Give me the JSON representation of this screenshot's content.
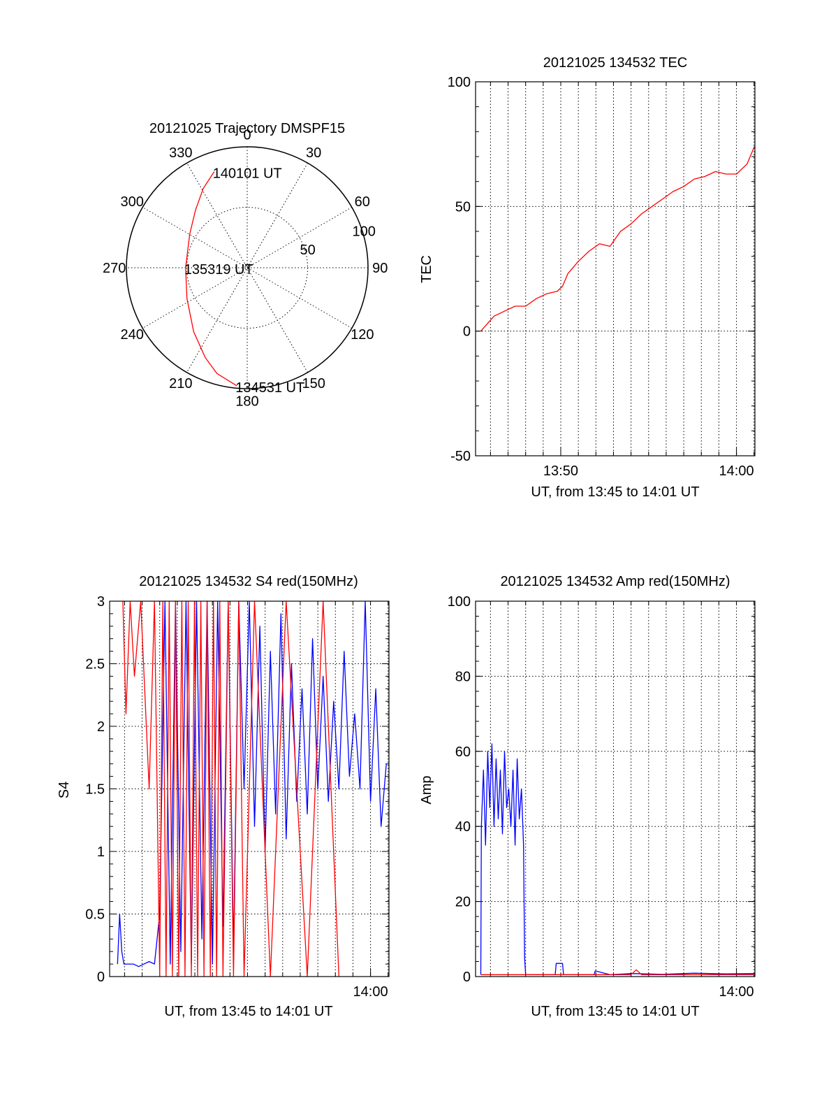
{
  "colors": {
    "red": "#ff0000",
    "blue": "#0000ff",
    "axis": "#000000"
  },
  "chart_data": [
    {
      "type": "polar",
      "title": "20121025 Trajectory DMSPF15",
      "azimuth_labels": [
        "0",
        "30",
        "60",
        "90",
        "120",
        "150",
        "180",
        "210",
        "240",
        "270",
        "300",
        "330"
      ],
      "radial_labels": [
        "50",
        "100"
      ],
      "rlim": [
        0,
        100
      ],
      "trajectory": {
        "color": "red",
        "points": [
          {
            "az": 341,
            "r": 84
          },
          {
            "az": 331,
            "r": 75
          },
          {
            "az": 318,
            "r": 64
          },
          {
            "az": 300,
            "r": 55
          },
          {
            "az": 270,
            "r": 51
          },
          {
            "az": 243,
            "r": 56
          },
          {
            "az": 220,
            "r": 69
          },
          {
            "az": 205,
            "r": 82
          },
          {
            "az": 196,
            "r": 91
          },
          {
            "az": 185,
            "r": 98
          }
        ]
      },
      "annotations": [
        {
          "text": "140101 UT",
          "az": 341,
          "r": 84
        },
        {
          "text": "135319 UT",
          "az": 270,
          "r": 51
        },
        {
          "text": "134531 UT",
          "az": 185,
          "r": 98
        }
      ]
    },
    {
      "type": "line",
      "title": "20121025 134532 TEC",
      "ylabel": "TEC",
      "xlabel": "UT, from 13:45 to 14:01 UT",
      "ylim": [
        -50,
        100
      ],
      "yticks": [
        -50,
        0,
        50,
        100
      ],
      "xlim": [
        13.7525,
        14.0175
      ],
      "xticks": [
        {
          "v": 13.8333,
          "label": "13:50"
        },
        {
          "v": 14.0,
          "label": "14:00"
        }
      ],
      "grid": true,
      "series": [
        {
          "color": "red",
          "x": [
            13.7575,
            13.77,
            13.78,
            13.79,
            13.8,
            13.81,
            13.82,
            13.83,
            13.835,
            13.84,
            13.85,
            13.86,
            13.87,
            13.88,
            13.89,
            13.9,
            13.91,
            13.92,
            13.93,
            13.94,
            13.95,
            13.96,
            13.97,
            13.98,
            13.99,
            14.0,
            14.01,
            14.017
          ],
          "y": [
            0,
            6,
            8,
            10,
            10,
            13,
            15,
            16,
            18,
            23,
            28,
            32,
            35,
            34,
            40,
            43,
            47,
            50,
            53,
            56,
            58,
            61,
            62,
            64,
            63,
            63,
            67,
            74
          ]
        }
      ]
    },
    {
      "type": "line",
      "title": "20121025 134532 S4 red(150MHz)",
      "ylabel": "S4",
      "xlabel": "UT, from 13:45 to 14:01 UT",
      "ylim": [
        0,
        3
      ],
      "yticks": [
        0,
        0.5,
        1,
        1.5,
        2,
        2.5,
        3
      ],
      "ytick_labels": [
        "0",
        "0.5",
        "1",
        "1.5",
        "2",
        "2.5",
        "3"
      ],
      "xlim": [
        13.7525,
        14.0175
      ],
      "xticks": [
        {
          "v": 14.0,
          "label": "14:00"
        }
      ],
      "grid": true,
      "series": [
        {
          "color": "blue",
          "x": [
            13.76,
            13.762,
            13.764,
            13.766,
            13.77,
            13.775,
            13.78,
            13.785,
            13.79,
            13.795,
            13.8,
            13.805,
            13.81,
            13.815,
            13.82,
            13.825,
            13.83,
            13.835,
            13.84,
            13.845,
            13.85,
            13.855,
            13.86,
            13.865,
            13.87,
            13.875,
            13.88,
            13.885,
            13.89,
            13.895,
            13.9,
            13.905,
            13.91,
            13.915,
            13.92,
            13.925,
            13.93,
            13.935,
            13.94,
            13.945,
            13.95,
            13.955,
            13.96,
            13.965,
            13.97,
            13.975,
            13.98,
            13.985,
            13.99,
            13.995,
            14.0,
            14.005,
            14.01,
            14.015
          ],
          "y": [
            0.1,
            0.5,
            0.2,
            0.1,
            0.1,
            0.1,
            0.08,
            0.1,
            0.12,
            0.1,
            0.5,
            3.0,
            0.1,
            3.0,
            0.2,
            3.0,
            0.1,
            3.0,
            0.3,
            3.0,
            0.1,
            3.0,
            0.4,
            3.0,
            0.2,
            3.0,
            1.5,
            3.0,
            1.2,
            2.8,
            1.0,
            2.6,
            1.3,
            2.9,
            1.1,
            2.5,
            1.4,
            2.3,
            1.3,
            2.7,
            1.5,
            2.4,
            1.4,
            2.2,
            1.5,
            2.6,
            1.6,
            2.1,
            1.5,
            3.0,
            1.4,
            2.3,
            1.2,
            1.7
          ]
        },
        {
          "color": "red",
          "x": [
            13.765,
            13.768,
            13.772,
            13.776,
            13.782,
            13.79,
            13.795,
            13.8,
            13.803,
            13.806,
            13.809,
            13.812,
            13.815,
            13.818,
            13.821,
            13.824,
            13.827,
            13.83,
            13.833,
            13.836,
            13.839,
            13.842,
            13.845,
            13.848,
            13.851,
            13.854,
            13.857,
            13.86,
            13.865,
            13.87,
            13.875,
            13.88,
            13.89,
            13.905,
            13.92,
            13.94,
            13.955,
            13.97
          ],
          "y": [
            3.0,
            2.1,
            3.0,
            2.4,
            3.0,
            1.5,
            3.0,
            0,
            3.0,
            0,
            3.0,
            0,
            3.0,
            0,
            3.0,
            0,
            3.0,
            0,
            3.0,
            0,
            3.0,
            0,
            3.0,
            0,
            3.0,
            0,
            3.0,
            0,
            3.0,
            0,
            3.0,
            0,
            3.0,
            0,
            3.0,
            0,
            3.0,
            0
          ]
        }
      ]
    },
    {
      "type": "line",
      "title": "20121025 134532 Amp red(150MHz)",
      "ylabel": "Amp",
      "xlabel": "UT, from 13:45 to 14:01 UT",
      "ylim": [
        0,
        100
      ],
      "yticks": [
        0,
        20,
        40,
        60,
        80,
        100
      ],
      "xlim": [
        13.7525,
        14.0175
      ],
      "xticks": [
        {
          "v": 14.0,
          "label": "14:00"
        }
      ],
      "grid": true,
      "series": [
        {
          "color": "blue",
          "x": [
            13.7575,
            13.758,
            13.76,
            13.762,
            13.764,
            13.766,
            13.768,
            13.77,
            13.772,
            13.774,
            13.776,
            13.778,
            13.78,
            13.782,
            13.784,
            13.786,
            13.788,
            13.79,
            13.792,
            13.794,
            13.796,
            13.798,
            13.799,
            13.8,
            13.81,
            13.82,
            13.828,
            13.829,
            13.835,
            13.836,
            13.85,
            13.865,
            13.866,
            13.88,
            13.9,
            13.93,
            13.96,
            13.99,
            14.017
          ],
          "y": [
            0.5,
            40,
            55,
            35,
            60,
            45,
            62,
            40,
            58,
            42,
            55,
            38,
            60,
            45,
            50,
            40,
            55,
            35,
            58,
            42,
            50,
            35,
            5,
            0.5,
            0.5,
            0.5,
            0.5,
            3.5,
            3.5,
            0.5,
            0.5,
            0.5,
            1.5,
            0.5,
            0.8,
            0.6,
            0.9,
            0.7,
            0.8
          ]
        },
        {
          "color": "red",
          "x": [
            13.7575,
            13.8,
            13.85,
            13.9,
            13.905,
            13.91,
            13.95,
            14.017
          ],
          "y": [
            0.5,
            0.5,
            0.5,
            0.5,
            1.8,
            0.5,
            0.5,
            0.5
          ]
        }
      ]
    }
  ]
}
